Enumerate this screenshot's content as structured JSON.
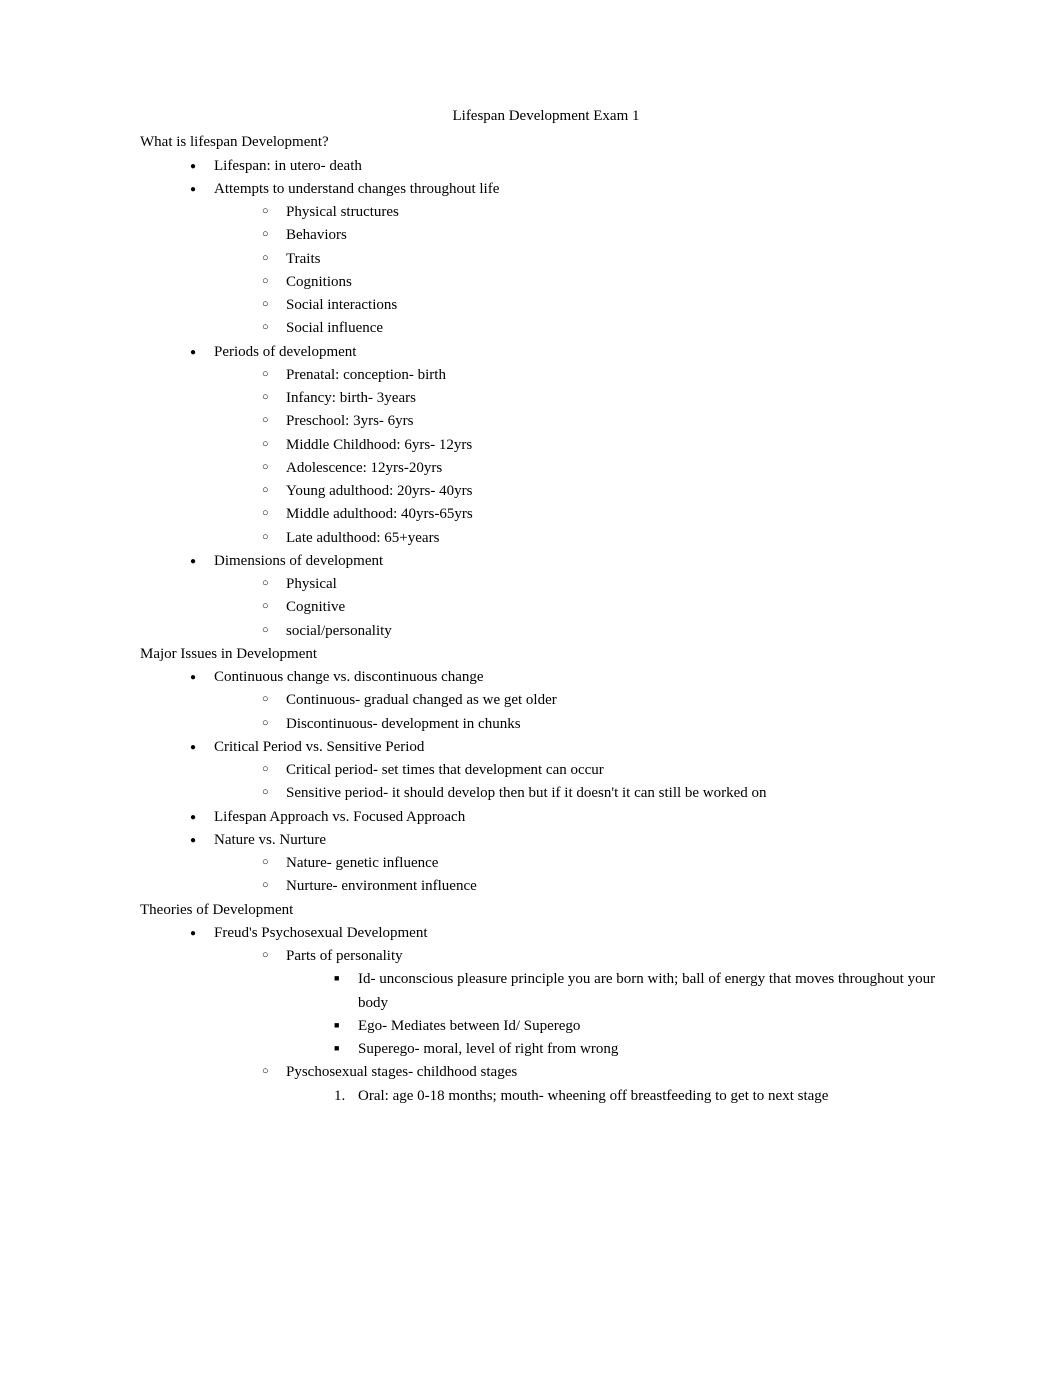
{
  "title": "Lifespan Development Exam 1",
  "sections": {
    "s1": {
      "header": "What is lifespan Development?",
      "items": [
        {
          "text": "Lifespan: in utero- death"
        },
        {
          "text": "Attempts to understand changes throughout life",
          "sub": [
            {
              "text": "Physical structures"
            },
            {
              "text": "Behaviors"
            },
            {
              "text": "Traits"
            },
            {
              "text": "Cognitions"
            },
            {
              "text": "Social interactions"
            },
            {
              "text": "Social influence"
            }
          ]
        },
        {
          "text": "Periods of development",
          "sub": [
            {
              "text": "Prenatal: conception- birth"
            },
            {
              "text": "Infancy: birth- 3years"
            },
            {
              "text": "Preschool: 3yrs- 6yrs"
            },
            {
              "text": "Middle Childhood: 6yrs- 12yrs"
            },
            {
              "text": "Adolescence: 12yrs-20yrs"
            },
            {
              "text": "Young adulthood: 20yrs- 40yrs"
            },
            {
              "text": "Middle adulthood: 40yrs-65yrs"
            },
            {
              "text": "Late adulthood: 65+years"
            }
          ]
        },
        {
          "text": "Dimensions of development",
          "sub": [
            {
              "text": "Physical"
            },
            {
              "text": "Cognitive"
            },
            {
              "text": "social/personality"
            }
          ]
        }
      ]
    },
    "s2": {
      "header": "Major Issues in Development",
      "items": [
        {
          "text": "Continuous change vs. discontinuous change",
          "sub": [
            {
              "text": "Continuous- gradual changed as we get older"
            },
            {
              "text": "Discontinuous-    development in chunks"
            }
          ]
        },
        {
          "text": "Critical Period vs. Sensitive Period",
          "sub": [
            {
              "text": "Critical period- set times that development can occur"
            },
            {
              "text": "Sensitive period- it should develop then but if it doesn't it can still be worked on"
            }
          ]
        },
        {
          "text": "Lifespan Approach vs. Focused Approach"
        },
        {
          "text": "Nature vs. Nurture",
          "sub": [
            {
              "text": "Nature- genetic influence"
            },
            {
              "text": "Nurture- environment influence"
            }
          ]
        }
      ]
    },
    "s3": {
      "header": "Theories of Development",
      "items": [
        {
          "text": "Freud's Psychosexual Development",
          "sub": [
            {
              "text": "Parts of personality",
              "sub3": [
                {
                  "text": "Id- unconscious pleasure principle you are born with; ball of energy that moves throughout your body"
                },
                {
                  "text": "Ego- Mediates between Id/ Superego"
                },
                {
                  "text": "Superego- moral, level of right from wrong"
                }
              ]
            },
            {
              "text": "Pyschosexual stages- childhood stages",
              "sub3num": [
                {
                  "text": "Oral: age 0-18 months; mouth- wheening off breastfeeding to get to next stage"
                }
              ]
            }
          ]
        }
      ]
    }
  }
}
